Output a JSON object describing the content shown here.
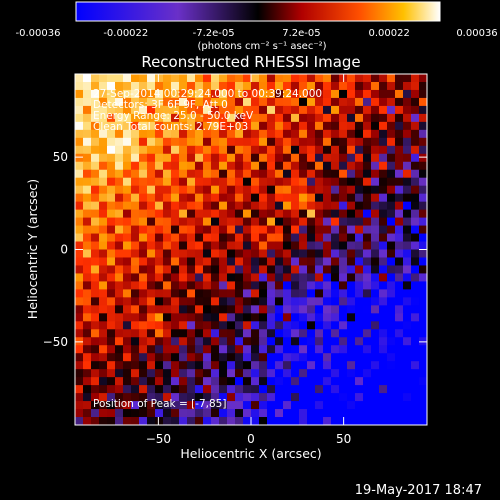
{
  "colorbar": {
    "tick_labels": [
      "-0.00036",
      "-0.00022",
      "-7.2e-05",
      "7.2e-05",
      "0.00022",
      "0.00036"
    ],
    "range": [
      -0.00036,
      0.00036
    ],
    "units": "(photons cm⁻² s⁻¹ asec⁻²)"
  },
  "chart_data": {
    "type": "heatmap",
    "title": "Reconstructed RHESSI Image",
    "xlabel": "Heliocentric X (arcsec)",
    "ylabel": "Heliocentric Y (arcsec)",
    "xlim": [
      -95,
      95
    ],
    "ylim": [
      -95,
      95
    ],
    "x_ticks": [
      -50,
      0,
      50
    ],
    "y_ticks": [
      -50,
      0,
      50
    ],
    "x_tick_labels": [
      "−50",
      "0",
      "50"
    ],
    "y_tick_labels": [
      "−50",
      "0",
      "50"
    ],
    "info_lines": [
      "27-Sep-2014 00:29:24.000 to 00:39:24.000",
      "Detectors: 3F 6F 9F, Att 0",
      "Energy Range: 25.0 - 50.0 keV",
      "Clean    Total counts: 2.79E+03"
    ],
    "peak_label": "Position of Peak = [-7,85]",
    "peak_position": [
      -7,
      85
    ],
    "colormap": [
      "#0000ff",
      "#6a30c8",
      "#000000",
      "#9a0000",
      "#ff3000",
      "#ff9a00",
      "#ffe080",
      "#ffffff"
    ]
  },
  "footer": {
    "date": "19-May-2017 18:47"
  }
}
